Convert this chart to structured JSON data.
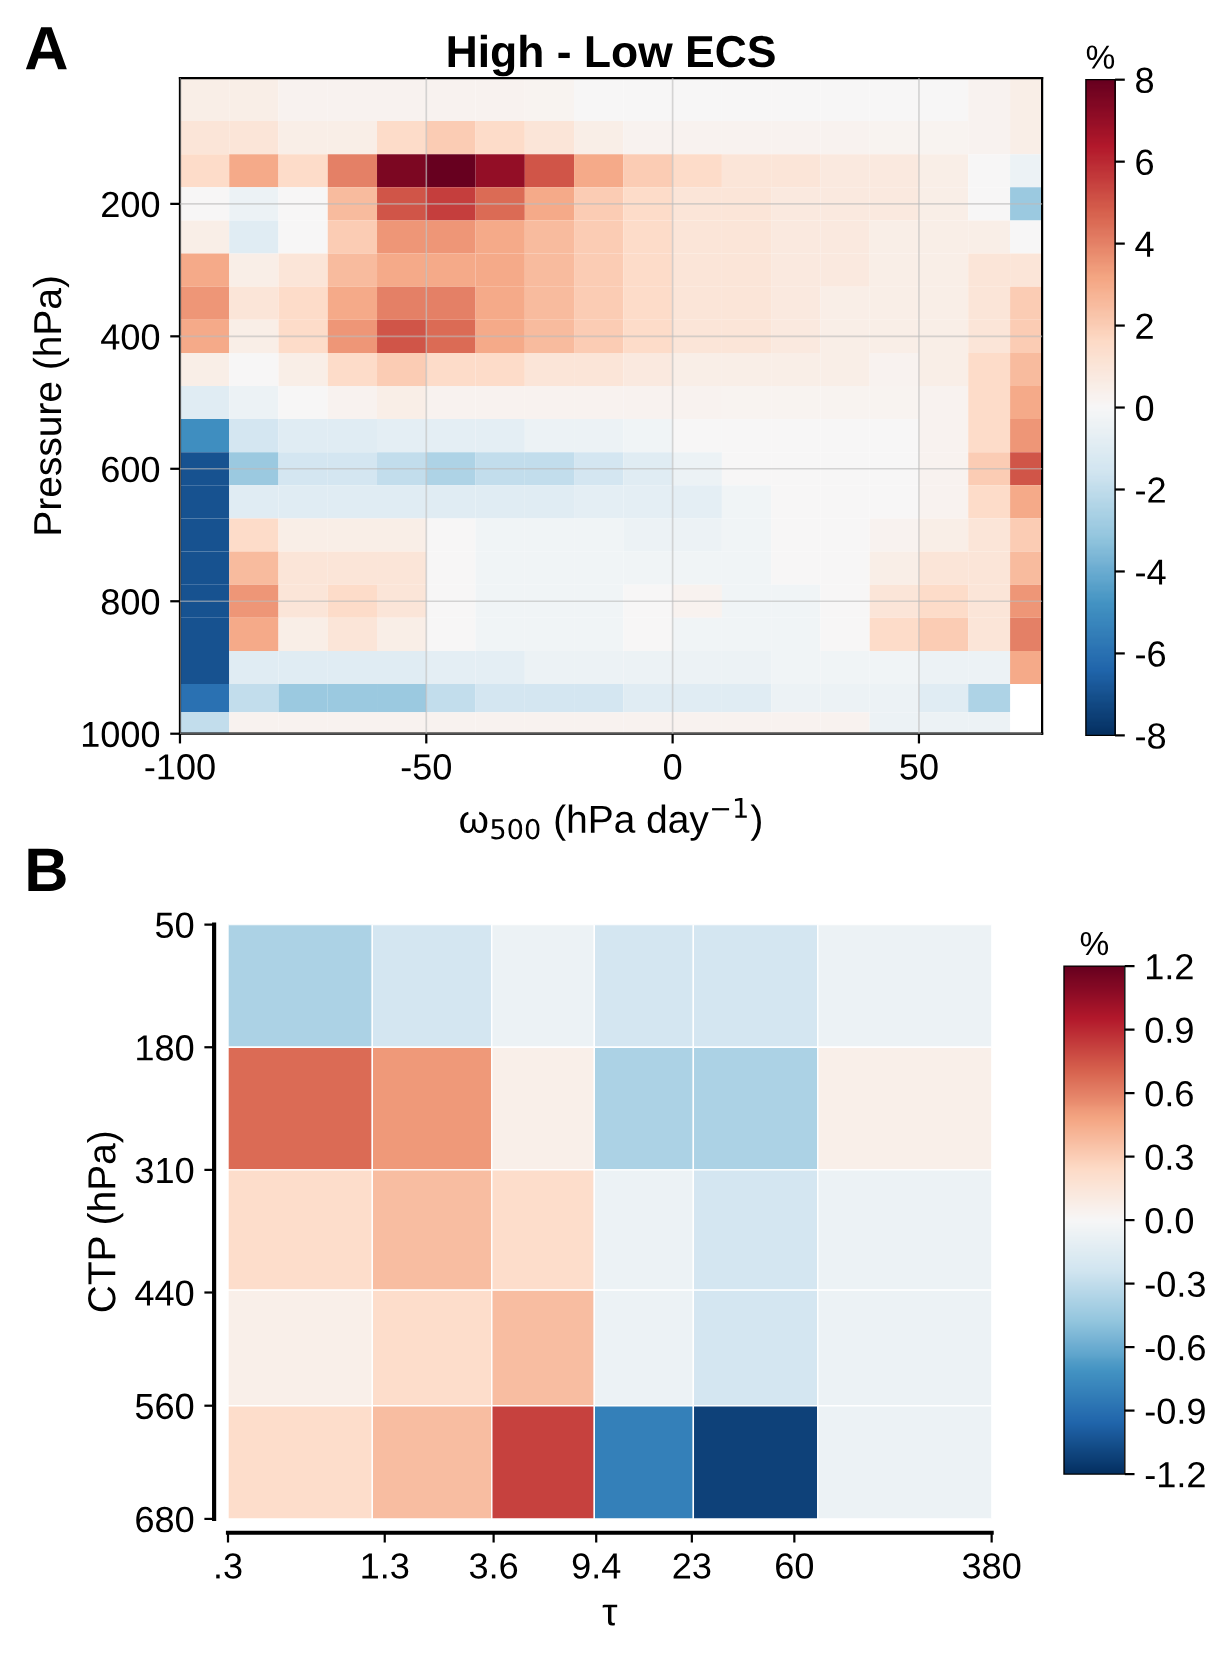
{
  "chart_data": [
    {
      "type": "heatmap",
      "title": "High - Low ECS",
      "xlabel": "ω$_{500}$ (hPa day$^{−1}$)",
      "ylabel": "Pressure (hPa)",
      "clabel": "%",
      "annotations": [
        "A"
      ],
      "x": [
        -95,
        -85,
        -75,
        -65,
        -55,
        -45,
        -35,
        -25,
        -15,
        -5,
        5,
        15,
        25,
        35,
        45,
        55,
        65,
        72
      ],
      "y": [
        50,
        100,
        150,
        200,
        250,
        300,
        350,
        400,
        450,
        500,
        550,
        600,
        650,
        700,
        750,
        800,
        850,
        900,
        950,
        985
      ],
      "cells": [
        [
          0.5,
          0.5,
          0.3,
          0.3,
          0.3,
          0.3,
          0.3,
          0.2,
          0,
          0,
          0,
          0,
          0,
          0,
          0,
          0,
          0.3,
          0.5
        ],
        [
          1,
          1,
          0.5,
          0.5,
          1.5,
          2,
          1.5,
          1,
          0.5,
          0.3,
          0.3,
          0.3,
          0.3,
          0.3,
          0.2,
          0.2,
          0.3,
          0.5
        ],
        [
          1.5,
          3,
          1.5,
          4,
          7.5,
          8,
          7,
          5,
          3,
          2,
          1.5,
          1,
          1,
          0.8,
          0.8,
          0.5,
          0,
          -0.5
        ],
        [
          0,
          -0.5,
          0,
          2.5,
          5,
          5.5,
          4.5,
          3,
          2,
          1.5,
          1,
          1,
          0.8,
          0.8,
          0.8,
          0.5,
          0,
          -3
        ],
        [
          0.5,
          -1,
          0,
          2,
          3.5,
          3.5,
          3,
          2.5,
          2,
          1.5,
          1,
          1,
          0.8,
          0.8,
          0.5,
          0.5,
          0.5,
          0
        ],
        [
          3,
          0.5,
          1,
          2.5,
          3,
          3,
          3,
          2.5,
          2,
          1.5,
          1,
          1,
          0.8,
          0.8,
          0.5,
          0.5,
          1,
          1
        ],
        [
          3.5,
          1,
          1.5,
          3,
          4,
          4,
          3,
          2.5,
          2,
          1.5,
          1,
          1,
          0.8,
          0.5,
          0.5,
          0.5,
          1,
          2
        ],
        [
          3,
          0.5,
          1.5,
          3.5,
          5,
          4.5,
          3,
          2.5,
          2,
          1.5,
          1,
          1,
          0.8,
          0.5,
          0.5,
          0.5,
          1,
          2
        ],
        [
          0.5,
          0,
          0.5,
          1.5,
          2,
          1.5,
          1.5,
          1,
          1,
          0.8,
          0.5,
          0.5,
          0.5,
          0.5,
          0.3,
          0.5,
          1.5,
          2.5
        ],
        [
          -1,
          -0.5,
          0,
          0.3,
          0.5,
          0.3,
          0.3,
          0.3,
          0.3,
          0.3,
          0.3,
          0.2,
          0.2,
          0.2,
          0.2,
          0.3,
          1.5,
          3
        ],
        [
          -5,
          -1.5,
          -1,
          -1,
          -0.8,
          -0.8,
          -0.8,
          -0.5,
          -0.5,
          -0.3,
          0,
          0,
          0,
          0,
          0,
          0.3,
          1.5,
          3.5
        ],
        [
          -7,
          -3,
          -1.5,
          -1.5,
          -2,
          -2.5,
          -2,
          -2,
          -1.5,
          -1,
          -0.5,
          0,
          0,
          0,
          0,
          0.3,
          2,
          5
        ],
        [
          -7,
          -1,
          -1,
          -1,
          -1,
          -1,
          -1,
          -1,
          -0.8,
          -0.8,
          -0.8,
          -0.3,
          0,
          0,
          0,
          0.3,
          1.5,
          3
        ],
        [
          -7,
          1.5,
          0.5,
          0.5,
          0.5,
          0,
          -0.3,
          -0.3,
          -0.3,
          -0.5,
          -0.5,
          -0.3,
          0,
          0,
          0.3,
          0.5,
          1,
          2
        ],
        [
          -7,
          2.5,
          1,
          1,
          1,
          0,
          -0.3,
          -0.3,
          -0.3,
          -0.3,
          -0.3,
          -0.3,
          0,
          0,
          0.5,
          1,
          1,
          2.5
        ],
        [
          -7,
          3.5,
          1,
          1.5,
          1,
          0,
          -0.3,
          -0.3,
          -0.3,
          0,
          0.3,
          -0.3,
          -0.3,
          0,
          1,
          1.5,
          1,
          3.5
        ],
        [
          -7,
          3,
          0.5,
          1,
          0.5,
          0,
          -0.3,
          -0.3,
          -0.3,
          0,
          -0.3,
          -0.3,
          -0.3,
          0,
          1.5,
          2,
          1,
          4
        ],
        [
          -7,
          -1,
          -1,
          -1,
          -1,
          -0.8,
          -0.8,
          -0.5,
          -0.5,
          -0.5,
          -0.5,
          -0.5,
          -0.3,
          -0.3,
          -0.3,
          -0.5,
          -0.5,
          3
        ],
        [
          -6,
          -2,
          -3,
          -3,
          -3,
          -2,
          -1.5,
          -1.5,
          -1.5,
          -1,
          -1,
          -1,
          -0.5,
          -0.5,
          -0.5,
          -1,
          -2.5,
          null
        ],
        [
          -2,
          0.3,
          0.3,
          0.3,
          0.3,
          0.3,
          0.3,
          0.3,
          0.3,
          0.3,
          0.3,
          0.3,
          0.3,
          0.3,
          -0.5,
          -0.5,
          -0.5,
          null
        ]
      ],
      "xlim": [
        -100,
        75
      ],
      "xticks": [
        -100,
        -50,
        0,
        50
      ],
      "ylim": [
        1000,
        10
      ],
      "yticks": [
        200,
        400,
        600,
        800,
        1000
      ],
      "grid": true,
      "clim": [
        -8,
        8
      ],
      "cticks": [
        -8,
        -6,
        -4,
        -2,
        0,
        2,
        4,
        6,
        8
      ]
    },
    {
      "type": "heatmap",
      "xlabel": "τ",
      "ylabel": "CTP (hPa)",
      "clabel": "%",
      "annotations": [
        "B"
      ],
      "x": [
        0.62,
        2.16,
        5.8,
        14.7,
        37,
        151
      ],
      "y": [
        115,
        245,
        375,
        500,
        620
      ],
      "log": "x",
      "cells": [
        [
          -0.38,
          -0.22,
          -0.07,
          -0.22,
          -0.22,
          -0.07
        ],
        [
          0.68,
          0.52,
          0.07,
          -0.38,
          -0.38,
          0.07
        ],
        [
          0.22,
          0.37,
          0.22,
          -0.07,
          -0.22,
          -0.07
        ],
        [
          0.07,
          0.22,
          0.37,
          -0.07,
          -0.22,
          -0.07
        ],
        [
          0.22,
          0.37,
          0.82,
          -0.82,
          -1.12,
          -0.07
        ]
      ],
      "xlim": [
        0.3,
        380
      ],
      "xticks": [
        {
          "value": 0.3,
          "label": ".3"
        },
        1.3,
        3.6,
        9.4,
        23,
        60,
        380
      ],
      "ylim": [
        680,
        50
      ],
      "yticks": [
        50,
        180,
        310,
        440,
        560,
        680
      ],
      "grid": false,
      "clim": [
        -1.2,
        1.2
      ],
      "cticks": [
        -1.2,
        -0.9,
        -0.6,
        -0.3,
        {
          "value": 0,
          "label": "0.0"
        },
        0.3,
        0.6,
        0.9,
        1.2
      ]
    }
  ]
}
